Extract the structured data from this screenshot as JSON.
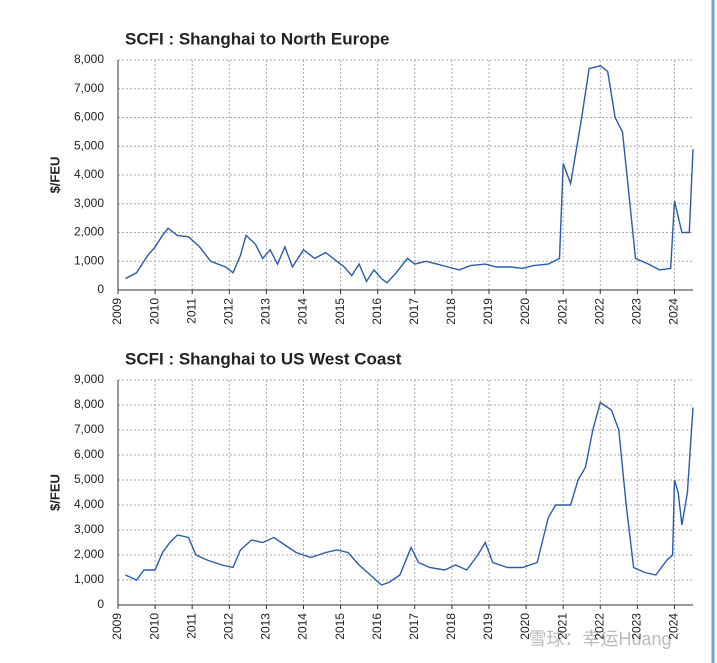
{
  "charts": [
    {
      "chart_data": {
        "type": "line",
        "title": "SCFI : Shanghai to North Europe",
        "y_label": "$/FEU",
        "x": [
          2009.2,
          2009.5,
          2009.8,
          2010.0,
          2010.2,
          2010.35,
          2010.6,
          2010.9,
          2011.2,
          2011.5,
          2011.9,
          2012.1,
          2012.3,
          2012.45,
          2012.7,
          2012.9,
          2013.1,
          2013.3,
          2013.5,
          2013.7,
          2014.0,
          2014.3,
          2014.6,
          2014.9,
          2015.1,
          2015.3,
          2015.5,
          2015.7,
          2015.9,
          2016.1,
          2016.25,
          2016.5,
          2016.8,
          2017.0,
          2017.3,
          2017.6,
          2017.9,
          2018.2,
          2018.5,
          2018.9,
          2019.2,
          2019.6,
          2019.9,
          2020.2,
          2020.6,
          2020.9,
          2021.0,
          2021.2,
          2021.5,
          2021.7,
          2022.0,
          2022.2,
          2022.4,
          2022.6,
          2022.8,
          2022.95,
          2023.3,
          2023.6,
          2023.9,
          2024.0,
          2024.2,
          2024.4,
          2024.5
        ],
        "series": [
          {
            "name": "Shanghai to North Europe",
            "color": "#2a5caa",
            "values": [
              400,
              600,
              1200,
              1500,
              1900,
              2150,
              1900,
              1850,
              1500,
              1000,
              800,
              600,
              1200,
              1900,
              1600,
              1100,
              1400,
              900,
              1500,
              800,
              1400,
              1100,
              1300,
              1000,
              800,
              500,
              900,
              300,
              700,
              400,
              250,
              600,
              1100,
              900,
              1000,
              900,
              800,
              700,
              850,
              900,
              800,
              800,
              750,
              850,
              900,
              1100,
              4400,
              3700,
              6000,
              7700,
              7800,
              7600,
              6000,
              5500,
              3000,
              1100,
              900,
              700,
              750,
              3100,
              2000,
              2000,
              4900
            ]
          }
        ],
        "xlim": [
          2009,
          2024.5
        ],
        "xticks": [
          2009,
          2010,
          2011,
          2012,
          2013,
          2014,
          2015,
          2016,
          2017,
          2018,
          2019,
          2020,
          2021,
          2022,
          2023,
          2024
        ],
        "ylim": [
          0,
          8000
        ],
        "yticks": [
          0,
          {
            "value": 1000,
            "label": "1,000"
          },
          {
            "value": 2000,
            "label": "2,000"
          },
          {
            "value": 3000,
            "label": "3,000"
          },
          {
            "value": 4000,
            "label": "4,000"
          },
          {
            "value": 5000,
            "label": "5,000"
          },
          {
            "value": 6000,
            "label": "6,000"
          },
          {
            "value": 7000,
            "label": "7,000"
          },
          {
            "value": 8000,
            "label": "8,000"
          }
        ],
        "grid": true
      }
    },
    {
      "chart_data": {
        "type": "line",
        "title": "SCFI : Shanghai to US West Coast",
        "y_label": "$/FEU",
        "x": [
          2009.2,
          2009.5,
          2009.7,
          2010.0,
          2010.2,
          2010.4,
          2010.6,
          2010.9,
          2011.1,
          2011.4,
          2011.8,
          2012.1,
          2012.3,
          2012.6,
          2012.9,
          2013.2,
          2013.5,
          2013.8,
          2014.2,
          2014.6,
          2014.9,
          2015.2,
          2015.5,
          2015.8,
          2016.1,
          2016.3,
          2016.6,
          2016.9,
          2017.1,
          2017.4,
          2017.8,
          2018.1,
          2018.4,
          2018.7,
          2018.9,
          2019.1,
          2019.5,
          2019.9,
          2020.3,
          2020.6,
          2020.8,
          2021.2,
          2021.4,
          2021.6,
          2021.8,
          2022.0,
          2022.3,
          2022.5,
          2022.7,
          2022.9,
          2023.2,
          2023.5,
          2023.8,
          2023.95,
          2024.0,
          2024.1,
          2024.2,
          2024.35,
          2024.5
        ],
        "series": [
          {
            "name": "Shanghai to US West Coast",
            "color": "#2a5caa",
            "values": [
              1200,
              1000,
              1400,
              1400,
              2100,
              2500,
              2800,
              2700,
              2000,
              1800,
              1600,
              1500,
              2200,
              2600,
              2500,
              2700,
              2400,
              2100,
              1900,
              2100,
              2200,
              2100,
              1600,
              1200,
              800,
              900,
              1200,
              2300,
              1700,
              1500,
              1400,
              1600,
              1400,
              2000,
              2500,
              1700,
              1500,
              1500,
              1700,
              3500,
              4000,
              4000,
              5000,
              5500,
              7000,
              8100,
              7800,
              7000,
              4000,
              1500,
              1300,
              1200,
              1800,
              2000,
              5000,
              4500,
              3200,
              4500,
              7900
            ]
          }
        ],
        "xlim": [
          2009,
          2024.5
        ],
        "xticks": [
          2009,
          2010,
          2011,
          2012,
          2013,
          2014,
          2015,
          2016,
          2017,
          2018,
          2019,
          2020,
          2021,
          2022,
          2023,
          2024
        ],
        "ylim": [
          0,
          9000
        ],
        "yticks": [
          0,
          {
            "value": 1000,
            "label": "1,000"
          },
          {
            "value": 2000,
            "label": "2,000"
          },
          {
            "value": 3000,
            "label": "3,000"
          },
          {
            "value": 4000,
            "label": "4,000"
          },
          {
            "value": 5000,
            "label": "5,000"
          },
          {
            "value": 6000,
            "label": "6,000"
          },
          {
            "value": 7000,
            "label": "7,000"
          },
          {
            "value": 8000,
            "label": "8,000"
          },
          {
            "value": 9000,
            "label": "9,000"
          }
        ],
        "grid": true
      }
    }
  ],
  "watermark": "雪球：幸运Huang"
}
